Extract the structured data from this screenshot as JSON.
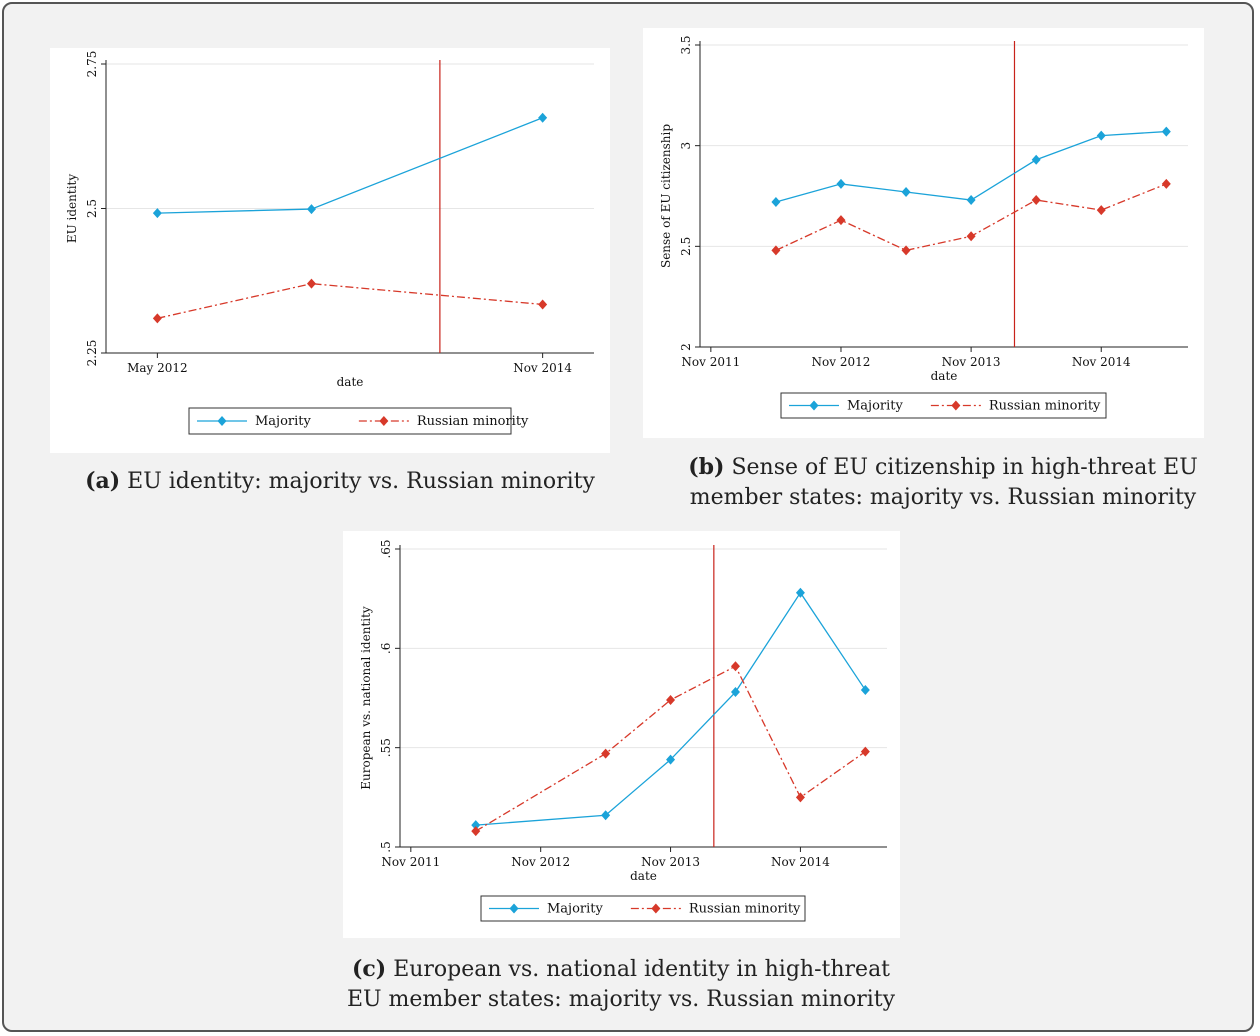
{
  "chart_data": [
    {
      "type": "line",
      "xlabel": "date",
      "ylabel": "EU identity",
      "x": [
        "May 2012",
        "May 2013",
        "Nov 2014"
      ],
      "xticks": [
        "May 2012",
        "Nov 2014"
      ],
      "ylim": [
        2.25,
        2.75
      ],
      "yticks": [
        "2.25",
        "2.5",
        "2.75"
      ],
      "vline": "Mar 2014",
      "grid": true,
      "legend": "bottom",
      "series": [
        {
          "name": "Majority",
          "color": "#1ba3d9",
          "style": "solid",
          "values": [
            2.492,
            2.499,
            2.657
          ]
        },
        {
          "name": "Russian minority",
          "color": "#d7392a",
          "style": "dash-dot",
          "values": [
            2.31,
            2.37,
            2.334
          ]
        }
      ]
    },
    {
      "type": "line",
      "xlabel": "date",
      "ylabel": "Sense of EU citizenship",
      "x": [
        "May 2012",
        "Nov 2012",
        "May 2013",
        "Nov 2013",
        "May 2014",
        "Nov 2014",
        "May 2015"
      ],
      "xticks": [
        "Nov 2011",
        "Nov 2012",
        "Nov 2013",
        "Nov 2014"
      ],
      "ylim": [
        2,
        3.5
      ],
      "yticks": [
        "2",
        "2.5",
        "3",
        "3.5"
      ],
      "vline": "Mar 2014",
      "grid": true,
      "legend": "bottom",
      "series": [
        {
          "name": "Majority",
          "color": "#1ba3d9",
          "style": "solid",
          "values": [
            2.72,
            2.81,
            2.77,
            2.73,
            2.93,
            3.05,
            3.07
          ]
        },
        {
          "name": "Russian minority",
          "color": "#d7392a",
          "style": "dash-dot",
          "values": [
            2.48,
            2.63,
            2.48,
            2.55,
            2.73,
            2.68,
            2.81
          ]
        }
      ]
    },
    {
      "type": "line",
      "xlabel": "date",
      "ylabel": "European vs. national identity",
      "x": [
        "May 2012",
        "May 2013",
        "Nov 2013",
        "May 2014",
        "Nov 2014",
        "May 2015"
      ],
      "xticks": [
        "Nov 2011",
        "Nov 2012",
        "Nov 2013",
        "Nov 2014"
      ],
      "ylim": [
        0.5,
        0.65
      ],
      "yticks": [
        ".5",
        ".55",
        ".6",
        ".65"
      ],
      "vline": "Mar 2014",
      "grid": true,
      "legend": "bottom",
      "series": [
        {
          "name": "Majority",
          "color": "#1ba3d9",
          "style": "solid",
          "values": [
            0.511,
            0.516,
            0.544,
            0.578,
            0.628,
            0.579
          ]
        },
        {
          "name": "Russian minority",
          "color": "#d7392a",
          "style": "dash-dot",
          "values": [
            0.508,
            0.547,
            0.574,
            0.591,
            0.525,
            0.548
          ]
        }
      ]
    }
  ],
  "captions": [
    {
      "label": "(a)",
      "lines": [
        "EU identity: majority vs. Russian minority"
      ]
    },
    {
      "label": "(b)",
      "lines": [
        "Sense of EU citizenship in high-threat EU",
        "member states: majority vs. Russian minority"
      ]
    },
    {
      "label": "(c)",
      "lines": [
        "European vs. national identity in high-threat",
        "EU member states: majority vs. Russian minority"
      ]
    }
  ]
}
